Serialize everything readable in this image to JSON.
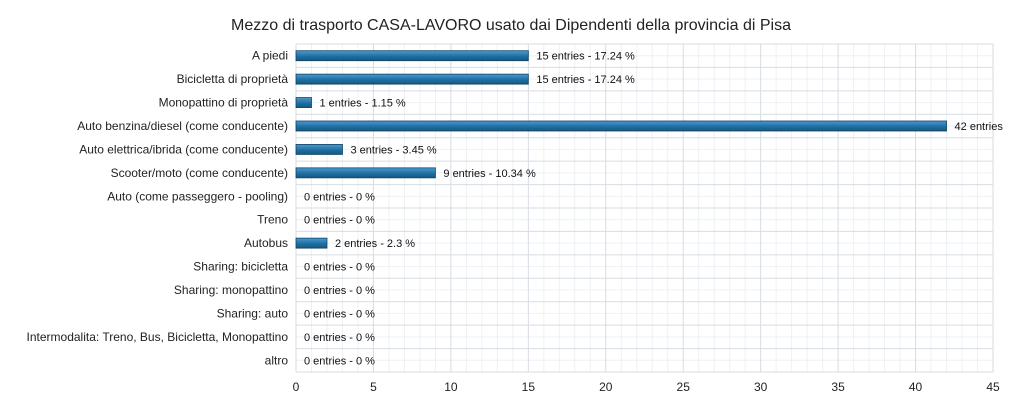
{
  "chart_data": {
    "type": "bar",
    "orientation": "horizontal",
    "title": "Mezzo di trasporto CASA-LAVORO usato dai Dipendenti della provincia di Pisa",
    "xlabel": "",
    "ylabel": "",
    "xlim": [
      0,
      45
    ],
    "x_ticks": [
      "0",
      "5",
      "10",
      "15",
      "20",
      "25",
      "30",
      "35",
      "40",
      "45"
    ],
    "grid": true,
    "bar_color": "#1f6fa3",
    "categories": [
      "A piedi",
      "Bicicletta di proprietà",
      "Monopattino di proprietà",
      "Auto benzina/diesel (come conducente)",
      "Auto elettrica/ibrida (come conducente)",
      "Scooter/moto (come conducente)",
      "Auto (come passeggero - pooling)",
      "Treno",
      "Autobus",
      "Sharing: bicicletta",
      "Sharing: monopattino",
      "Sharing: auto",
      "Intermodalita: Treno, Bus, Bicicletta, Monopattino",
      "altro"
    ],
    "values": [
      15,
      15,
      1,
      42,
      3,
      9,
      0,
      0,
      2,
      0,
      0,
      0,
      0,
      0
    ],
    "data_labels": [
      "15 entries - 17.24 %",
      "15 entries - 17.24 %",
      "1 entries - 1.15 %",
      "42 entries",
      "3 entries - 3.45 %",
      "9 entries - 10.34 %",
      "0 entries - 0 %",
      "0 entries - 0 %",
      "2 entries - 2.3 %",
      "0 entries - 0 %",
      "0 entries - 0 %",
      "0 entries - 0 %",
      "0 entries - 0 %",
      "0 entries - 0 %"
    ]
  }
}
